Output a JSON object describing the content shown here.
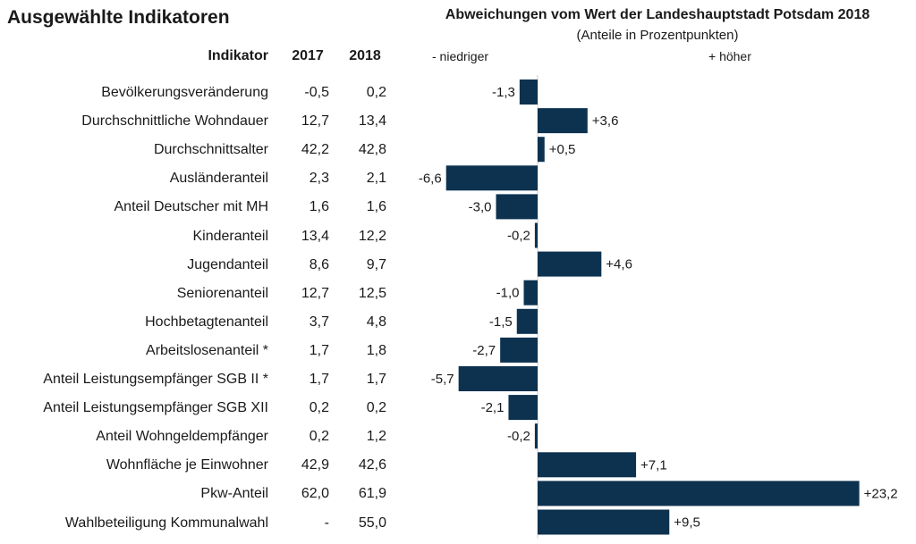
{
  "left_title": "Ausgewählte Indikatoren",
  "table": {
    "header": {
      "indicator": "Indikator",
      "year1": "2017",
      "year2": "2018"
    },
    "rows": [
      {
        "label": "Bevölkerungsveränderung",
        "v2017": "-0,5",
        "v2018": "0,2"
      },
      {
        "label": "Durchschnittliche Wohndauer",
        "v2017": "12,7",
        "v2018": "13,4"
      },
      {
        "label": "Durchschnittsalter",
        "v2017": "42,2",
        "v2018": "42,8"
      },
      {
        "label": "Ausländeranteil",
        "v2017": "2,3",
        "v2018": "2,1"
      },
      {
        "label": "Anteil Deutscher mit MH",
        "v2017": "1,6",
        "v2018": "1,6"
      },
      {
        "label": "Kinderanteil",
        "v2017": "13,4",
        "v2018": "12,2"
      },
      {
        "label": "Jugendanteil",
        "v2017": "8,6",
        "v2018": "9,7"
      },
      {
        "label": "Seniorenanteil",
        "v2017": "12,7",
        "v2018": "12,5"
      },
      {
        "label": "Hochbetagtenanteil",
        "v2017": "3,7",
        "v2018": "4,8"
      },
      {
        "label": "Arbeitslosenanteil *",
        "v2017": "1,7",
        "v2018": "1,8"
      },
      {
        "label": "Anteil Leistungsempfänger SGB II *",
        "v2017": "1,7",
        "v2018": "1,7"
      },
      {
        "label": "Anteil Leistungsempfänger SGB XII",
        "v2017": "0,2",
        "v2018": "0,2"
      },
      {
        "label": "Anteil Wohngeldempfänger",
        "v2017": "0,2",
        "v2018": "1,2"
      },
      {
        "label": "Wohnfläche je Einwohner",
        "v2017": "42,9",
        "v2018": "42,6"
      },
      {
        "label": "Pkw-Anteil",
        "v2017": "62,0",
        "v2018": "61,9"
      },
      {
        "label": "Wahlbeteiligung Kommunalwahl",
        "v2017": "-",
        "v2018": "55,0"
      }
    ]
  },
  "chart_data": {
    "type": "bar",
    "orientation": "horizontal",
    "title": "Abweichungen vom Wert der Landeshauptstadt Potsdam 2018",
    "subtitle": "(Anteile in Prozentpunkten)",
    "legend_low": "- niedriger",
    "legend_high": "+ höher",
    "bar_color": "#0d3250",
    "categories": [
      "Bevölkerungsveränderung",
      "Durchschnittliche Wohndauer",
      "Durchschnittsalter",
      "Ausländeranteil",
      "Anteil Deutscher mit MH",
      "Kinderanteil",
      "Jugendanteil",
      "Seniorenanteil",
      "Hochbetagtenanteil",
      "Arbeitslosenanteil *",
      "Anteil Leistungsempfänger SGB II *",
      "Anteil Leistungsempfänger SGB XII",
      "Anteil Wohngeldempfänger",
      "Wohnfläche je Einwohner",
      "Pkw-Anteil",
      "Wahlbeteiligung Kommunalwahl"
    ],
    "values": [
      -1.3,
      3.6,
      0.5,
      -6.6,
      -3.0,
      -0.2,
      4.6,
      -1.0,
      -1.5,
      -2.7,
      -5.7,
      -2.1,
      -0.2,
      7.1,
      23.2,
      9.5
    ],
    "value_labels": [
      "-1,3",
      "+3,6",
      "+0,5",
      "-6,6",
      "-3,0",
      "-0,2",
      "+4,6",
      "-1,0",
      "-1,5",
      "-2,7",
      "-5,7",
      "-2,1",
      "-0,2",
      "+7,1",
      "+23,2",
      "+9,5"
    ]
  }
}
